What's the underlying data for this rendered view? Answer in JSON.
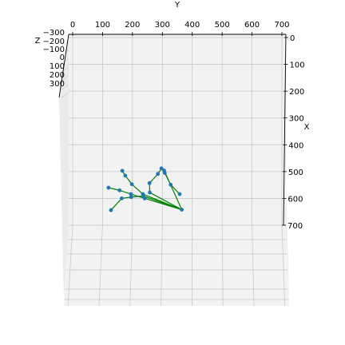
{
  "chart_data": {
    "type": "scatter",
    "projection": "3d",
    "title": "",
    "axes": {
      "y": {
        "label": "Y",
        "ticks": [
          "0",
          "100",
          "200",
          "300",
          "400",
          "500",
          "600",
          "700"
        ],
        "lim": [
          0,
          700
        ]
      },
      "x": {
        "label": "X",
        "ticks": [
          "0",
          "100",
          "200",
          "300",
          "400",
          "500",
          "600",
          "700"
        ],
        "lim": [
          0,
          700
        ]
      },
      "z": {
        "label": "Z",
        "ticks": [
          "−300",
          "−200",
          "−100",
          "0",
          "100",
          "200",
          "300"
        ],
        "lim": [
          -300,
          300
        ]
      }
    },
    "grid": true,
    "colors": {
      "points": "#1f77b4",
      "bones": "#008000",
      "pane": "#f2f2f2",
      "grid": "#c8c8c8"
    },
    "points": [
      {
        "y": 365,
        "x": 642
      },
      {
        "y": 241,
        "x": 600
      },
      {
        "y": 195,
        "x": 584
      },
      {
        "y": 157,
        "x": 570
      },
      {
        "y": 120,
        "x": 560
      },
      {
        "y": 235,
        "x": 584
      },
      {
        "y": 198,
        "x": 547
      },
      {
        "y": 176,
        "x": 515
      },
      {
        "y": 166,
        "x": 497
      },
      {
        "y": 258,
        "x": 578
      },
      {
        "y": 257,
        "x": 543
      },
      {
        "y": 285,
        "x": 509
      },
      {
        "y": 297,
        "x": 488
      },
      {
        "y": 306,
        "x": 496
      },
      {
        "y": 308,
        "x": 505
      },
      {
        "y": 328,
        "x": 549
      },
      {
        "y": 358,
        "x": 584
      },
      {
        "y": 236,
        "x": 591
      },
      {
        "y": 196,
        "x": 595
      },
      {
        "y": 164,
        "x": 600
      },
      {
        "y": 128,
        "x": 644
      }
    ],
    "bones": [
      [
        0,
        1
      ],
      [
        1,
        2
      ],
      [
        2,
        3
      ],
      [
        3,
        4
      ],
      [
        0,
        5
      ],
      [
        5,
        6
      ],
      [
        6,
        7
      ],
      [
        7,
        8
      ],
      [
        0,
        9
      ],
      [
        9,
        10
      ],
      [
        10,
        11
      ],
      [
        11,
        12
      ],
      [
        0,
        13
      ],
      [
        13,
        14
      ],
      [
        14,
        15
      ],
      [
        15,
        16
      ],
      [
        0,
        17
      ],
      [
        17,
        18
      ],
      [
        18,
        19
      ],
      [
        19,
        20
      ]
    ]
  }
}
